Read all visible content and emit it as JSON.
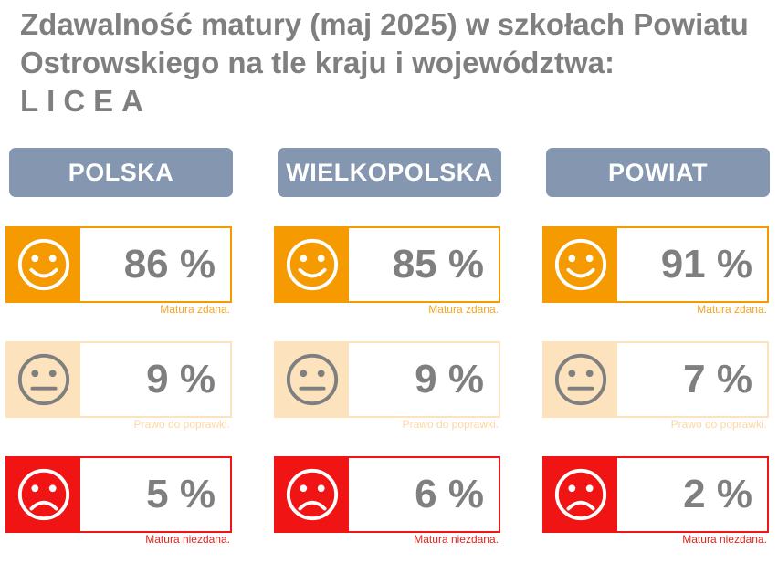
{
  "title": {
    "line1": "Zdawalność matury (maj 2025) w szkołach Powiatu",
    "line2": "Ostrowskiego na tle kraju i województwa:",
    "line3": "LICEA"
  },
  "colors": {
    "header_bg": "#8496b0",
    "pass": "#f59a00",
    "retake": "#fde3bd",
    "fail": "#f01414",
    "value_text": "#7f7f7f"
  },
  "captions": {
    "pass": "Matura zdana.",
    "retake": "Prawo do poprawki.",
    "fail": "Matura niezdana."
  },
  "icons": {
    "pass": "smiling-face-icon",
    "retake": "neutral-face-icon",
    "fail": "frowning-face-icon"
  },
  "columns": [
    {
      "header": "POLSKA",
      "pass": "86 %",
      "retake": "9 %",
      "fail": "5 %"
    },
    {
      "header": "WIELKOPOLSKA",
      "pass": "85 %",
      "retake": "9 %",
      "fail": "6 %"
    },
    {
      "header": "POWIAT",
      "pass": "91 %",
      "retake": "7 %",
      "fail": "2 %"
    }
  ]
}
